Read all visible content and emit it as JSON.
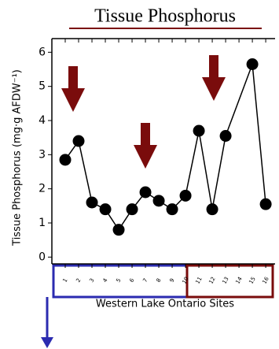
{
  "chart_data": {
    "type": "line",
    "title": "Tissue Phosphorus",
    "y_label": "Tissue Phosphorus (mg·g AFDW⁻¹)",
    "x_label": "Western Lake Ontario Sites",
    "x": [
      1,
      2,
      3,
      4,
      5,
      6,
      7,
      8,
      9,
      10,
      11,
      12,
      13,
      15,
      16
    ],
    "values": [
      2.85,
      3.4,
      1.6,
      1.4,
      0.8,
      1.4,
      1.9,
      1.65,
      1.4,
      1.8,
      3.7,
      1.4,
      3.55,
      5.65,
      1.55
    ],
    "color": "#000000",
    "title_color": "#7a0c0c",
    "xlim": [
      0,
      16.7
    ],
    "xticks": [
      1,
      2,
      3,
      4,
      5,
      6,
      7,
      8,
      9,
      10,
      11,
      12,
      13,
      14,
      15,
      16
    ],
    "ylim": [
      -0.2,
      6.4
    ],
    "yticks": [
      0,
      1,
      2,
      3,
      4,
      5,
      6
    ],
    "grid": false
  }
}
